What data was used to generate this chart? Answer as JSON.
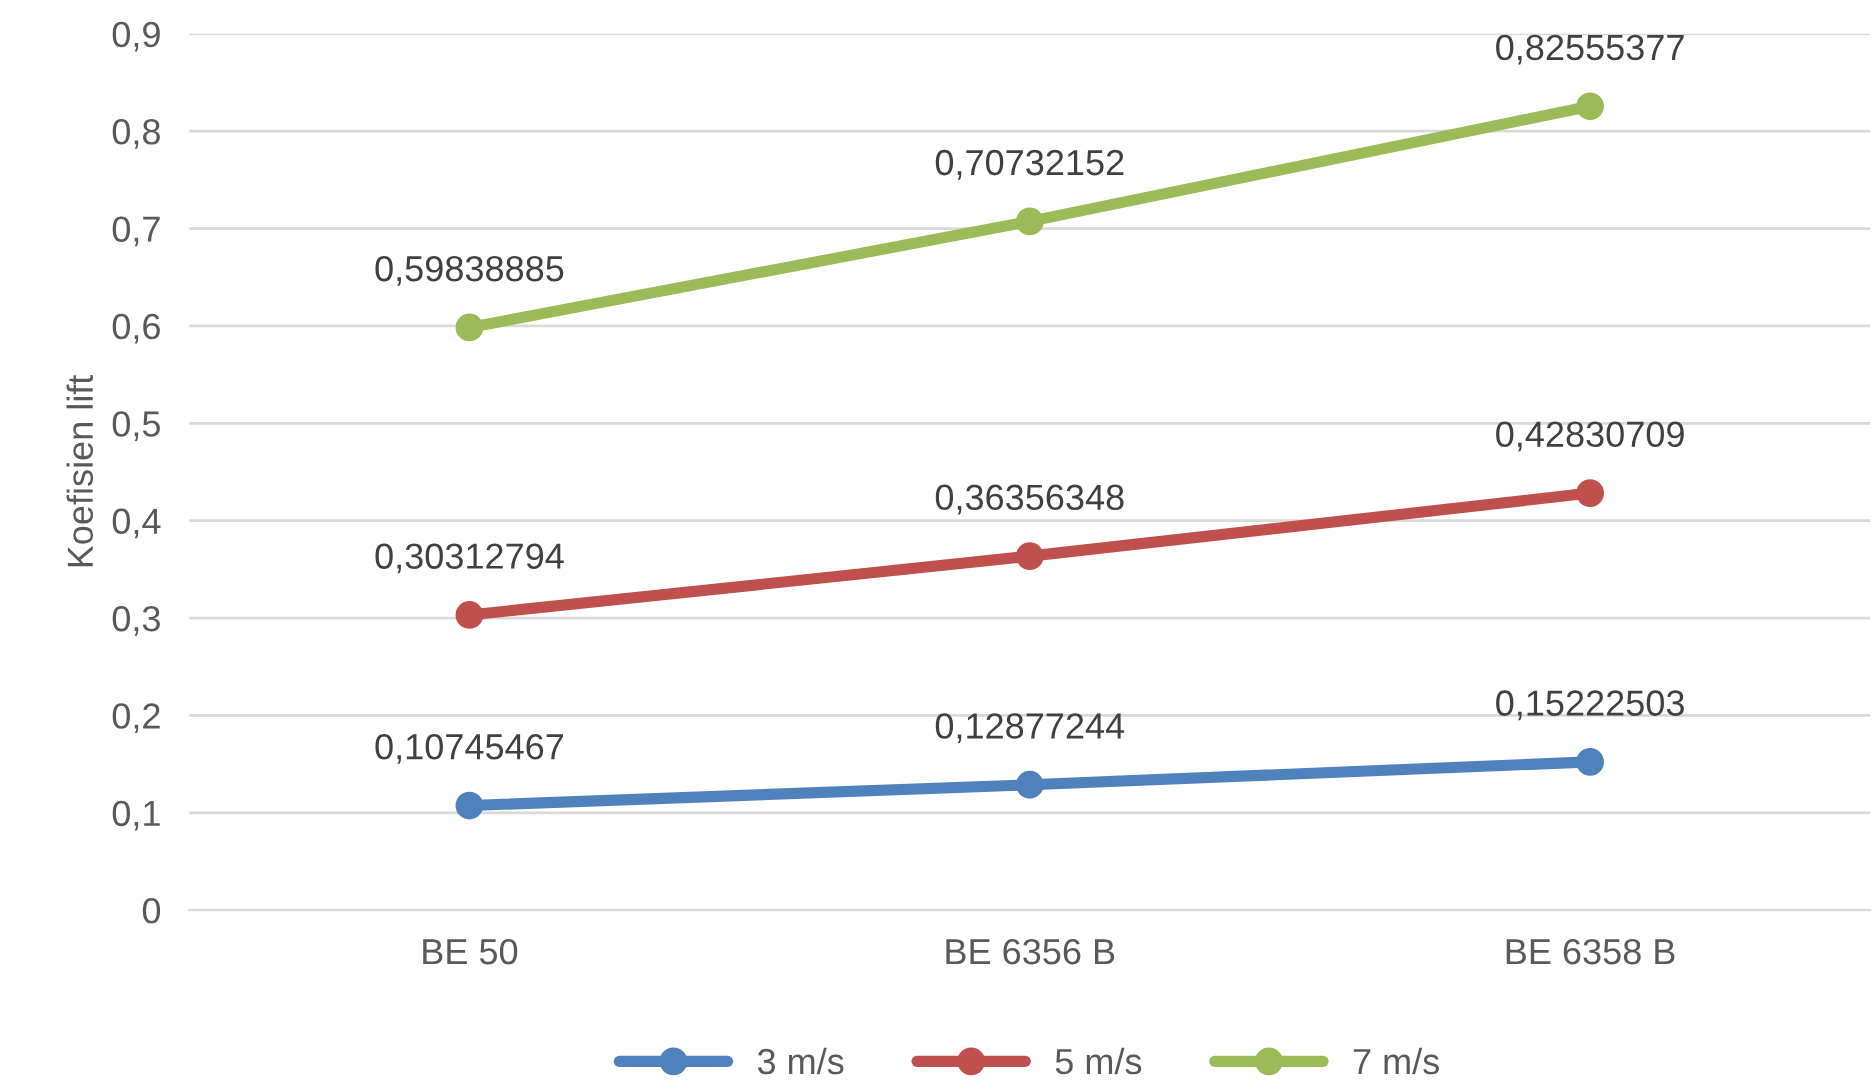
{
  "chart_data": {
    "type": "line",
    "ylabel": "Koefisien lift",
    "categories": [
      "BE 50",
      "BE 6356 B",
      "BE 6358 B"
    ],
    "series": [
      {
        "name": "3 m/s",
        "color": "#4f81bd",
        "values": [
          0.10745467,
          0.12877244,
          0.15222503
        ],
        "value_labels": [
          "0,10745467",
          "0,12877244",
          "0,15222503"
        ]
      },
      {
        "name": "5 m/s",
        "color": "#c0504d",
        "values": [
          0.30312794,
          0.36356348,
          0.42830709
        ],
        "value_labels": [
          "0,30312794",
          "0,36356348",
          "0,42830709"
        ]
      },
      {
        "name": "7 m/s",
        "color": "#9bbb59",
        "values": [
          0.59838885,
          0.70732152,
          0.82555377
        ],
        "value_labels": [
          "0,59838885",
          "0,70732152",
          "0,82555377"
        ]
      }
    ],
    "ylim": [
      0,
      0.9
    ],
    "yticks": [
      0,
      {
        "value": 0.1,
        "label": "0,1"
      },
      {
        "value": 0.2,
        "label": "0,2"
      },
      {
        "value": 0.3,
        "label": "0,3"
      },
      {
        "value": 0.4,
        "label": "0,4"
      },
      {
        "value": 0.5,
        "label": "0,5"
      },
      {
        "value": 0.6,
        "label": "0,6"
      },
      {
        "value": 0.7,
        "label": "0,7"
      },
      {
        "value": 0.8,
        "label": "0,8"
      },
      {
        "value": 0.9,
        "label": "0,9"
      }
    ],
    "grid": "y",
    "legend": "bottom",
    "marker": "circle",
    "line_style": "solid"
  }
}
